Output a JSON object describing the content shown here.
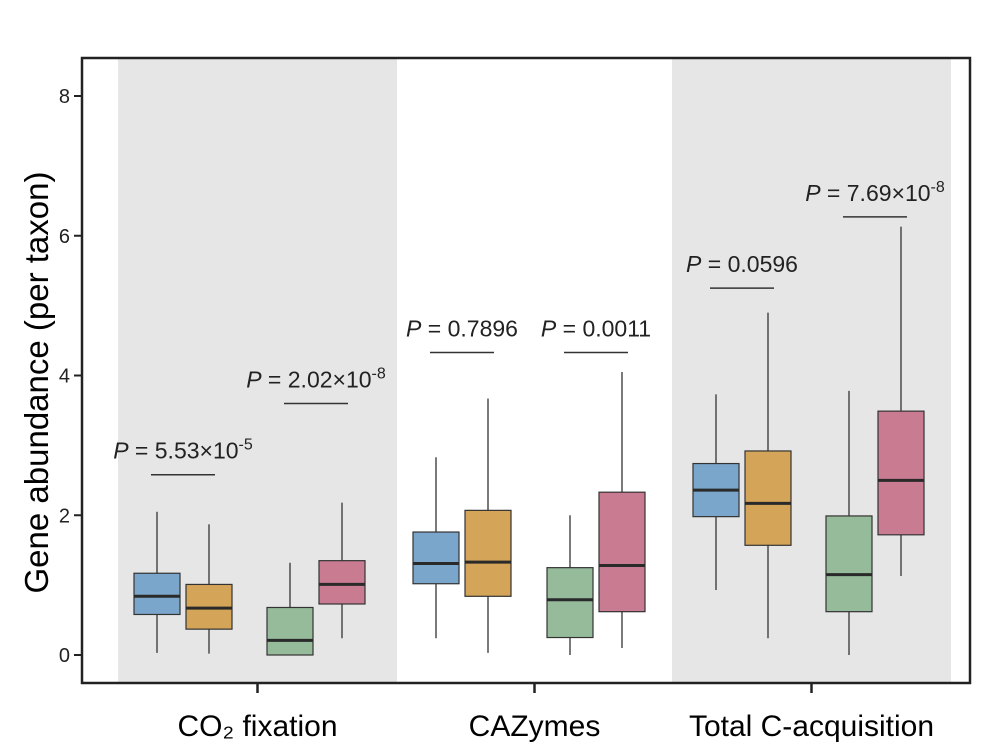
{
  "chart_data": {
    "type": "box",
    "ylabel": "Gene abundance (per taxon)",
    "ylim": [
      -0.4,
      8.5
    ],
    "yticks": [
      0,
      2,
      4,
      6,
      8
    ],
    "categories": [
      "CO₂ fixation",
      "CAZymes",
      "Total C-acquisition"
    ],
    "shaded_categories": [
      0,
      2
    ],
    "colors": {
      "blue": "#7ba6cb",
      "orange": "#d4a458",
      "green": "#96bb9a",
      "pink": "#c87b91",
      "shade": "#e6e6e6",
      "axis": "#222222"
    },
    "boxes": [
      {
        "category": 0,
        "color": "blue",
        "min": 0.03,
        "q1": 0.58,
        "median": 0.84,
        "q3": 1.17,
        "max": 2.05
      },
      {
        "category": 0,
        "color": "orange",
        "min": 0.02,
        "q1": 0.37,
        "median": 0.67,
        "q3": 1.01,
        "max": 1.87
      },
      {
        "category": 0,
        "color": "green",
        "min": 0.0,
        "q1": 0.0,
        "median": 0.21,
        "q3": 0.68,
        "max": 1.32
      },
      {
        "category": 0,
        "color": "pink",
        "min": 0.24,
        "q1": 0.73,
        "median": 1.01,
        "q3": 1.35,
        "max": 2.18
      },
      {
        "category": 1,
        "color": "blue",
        "min": 0.24,
        "q1": 1.02,
        "median": 1.31,
        "q3": 1.76,
        "max": 2.83
      },
      {
        "category": 1,
        "color": "orange",
        "min": 0.03,
        "q1": 0.84,
        "median": 1.33,
        "q3": 2.07,
        "max": 3.67
      },
      {
        "category": 1,
        "color": "green",
        "min": 0.0,
        "q1": 0.25,
        "median": 0.79,
        "q3": 1.25,
        "max": 2.0
      },
      {
        "category": 1,
        "color": "pink",
        "min": 0.1,
        "q1": 0.62,
        "median": 1.28,
        "q3": 2.33,
        "max": 4.05
      },
      {
        "category": 2,
        "color": "blue",
        "min": 0.93,
        "q1": 1.98,
        "median": 2.36,
        "q3": 2.74,
        "max": 3.73
      },
      {
        "category": 2,
        "color": "orange",
        "min": 0.24,
        "q1": 1.57,
        "median": 2.17,
        "q3": 2.92,
        "max": 4.9
      },
      {
        "category": 2,
        "color": "green",
        "min": 0.0,
        "q1": 0.62,
        "median": 1.15,
        "q3": 1.99,
        "max": 3.78
      },
      {
        "category": 2,
        "color": "pink",
        "min": 1.13,
        "q1": 1.72,
        "median": 2.5,
        "q3": 3.49,
        "max": 6.13
      }
    ],
    "annotations": [
      {
        "pair": [
          0,
          1
        ],
        "y": 2.58,
        "p": "P",
        "eq": " = 5.53×10",
        "exp": "-5"
      },
      {
        "pair": [
          2,
          3
        ],
        "y": 3.6,
        "p": "P",
        "eq": " = 2.02×10",
        "exp": "-8"
      },
      {
        "pair": [
          4,
          5
        ],
        "y": 4.33,
        "p": "P",
        "eq": " = 0.7896",
        "exp": ""
      },
      {
        "pair": [
          6,
          7
        ],
        "y": 4.33,
        "p": "P",
        "eq": " = 0.0011",
        "exp": ""
      },
      {
        "pair": [
          8,
          9
        ],
        "y": 5.25,
        "p": "P",
        "eq": " = 0.0596",
        "exp": ""
      },
      {
        "pair": [
          10,
          11
        ],
        "y": 6.27,
        "p": "P",
        "eq": " = 7.69×10",
        "exp": "-8"
      }
    ]
  }
}
